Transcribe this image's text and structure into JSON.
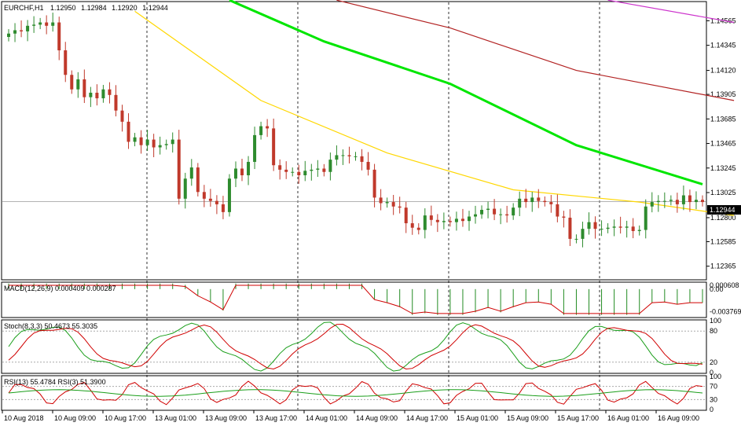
{
  "header": {
    "symbol": "EURCHF,H1",
    "open": "1.12950",
    "high": "1.12984",
    "low": "1.12920",
    "close": "1.12944"
  },
  "colors": {
    "bull": "#2e8b2e",
    "bear": "#c0392b",
    "ma_fast": "#ffd700",
    "ma_mid": "#00e600",
    "ma_slow": "#b22222",
    "ma_xslow": "#cc33cc",
    "signal_red": "#d00000",
    "signal_green": "#1a9e1a",
    "macd_hist": "#228b22"
  },
  "chart_data": [
    {
      "type": "candlestick",
      "panel": "price",
      "title": "EURCHF,H1",
      "ylim": [
        1.1225,
        1.1473
      ],
      "current_price": "1.12944",
      "y_ticks": [
        "1.14565",
        "1.14345",
        "1.14120",
        "1.13905",
        "1.13685",
        "1.13465",
        "1.13245",
        "1.13025",
        "1.12800",
        "1.12585",
        "1.12365"
      ],
      "x_ticks": [
        "10 Aug 2018",
        "10 Aug 09:00",
        "10 Aug 17:00",
        "13 Aug 01:00",
        "13 Aug 09:00",
        "13 Aug 17:00",
        "14 Aug 01:00",
        "14 Aug 09:00",
        "14 Aug 17:00",
        "15 Aug 01:00",
        "15 Aug 09:00",
        "15 Aug 17:00",
        "16 Aug 01:00",
        "16 Aug 09:00"
      ],
      "close": [
        1.1445,
        1.1448,
        1.1447,
        1.1452,
        1.1453,
        1.1455,
        1.1452,
        1.1455,
        1.143,
        1.1408,
        1.1395,
        1.1404,
        1.1388,
        1.1392,
        1.1387,
        1.1395,
        1.139,
        1.1376,
        1.1366,
        1.1348,
        1.1352,
        1.1345,
        1.135,
        1.1343,
        1.1345,
        1.1346,
        1.135,
        1.1297,
        1.1315,
        1.1325,
        1.1303,
        1.1297,
        1.1295,
        1.1292,
        1.1285,
        1.1315,
        1.1324,
        1.1318,
        1.133,
        1.1354,
        1.1362,
        1.136,
        1.1327,
        1.1323,
        1.1321,
        1.1321,
        1.1318,
        1.1322,
        1.1323,
        1.1324,
        1.1321,
        1.1332,
        1.1336,
        1.1336,
        1.1335,
        1.1335,
        1.133,
        1.1323,
        1.1298,
        1.1293,
        1.1294,
        1.129,
        1.1289,
        1.1275,
        1.1271,
        1.1269,
        1.1282,
        1.1278,
        1.1276,
        1.1277,
        1.1276,
        1.1279,
        1.1277,
        1.1281,
        1.1283,
        1.1287,
        1.1288,
        1.1283,
        1.1283,
        1.1282,
        1.1289,
        1.1297,
        1.1294,
        1.1298,
        1.1295,
        1.1294,
        1.1292,
        1.1281,
        1.128,
        1.1261,
        1.1261,
        1.127,
        1.1276,
        1.127,
        1.127,
        1.1271,
        1.1272,
        1.1271,
        1.1272,
        1.1268,
        1.1269,
        1.129,
        1.1294,
        1.1295,
        1.1295,
        1.1296,
        1.1292,
        1.13,
        1.1294,
        1.1296,
        1.1294
      ],
      "moving_averages": [
        {
          "color_key": "ma_fast",
          "points": [
            [
              20,
              1.1465
            ],
            [
              40,
              1.1385
            ],
            [
              60,
              1.1338
            ],
            [
              80,
              1.1305
            ],
            [
              100,
              1.1294
            ],
            [
              115,
              1.1282
            ]
          ]
        },
        {
          "color_key": "ma_mid",
          "points": [
            [
              35,
              1.1475
            ],
            [
              50,
              1.1438
            ],
            [
              70,
              1.14
            ],
            [
              90,
              1.1345
            ],
            [
              110,
              1.131
            ]
          ]
        },
        {
          "color_key": "ma_slow",
          "points": [
            [
              52,
              1.1475
            ],
            [
              70,
              1.145
            ],
            [
              90,
              1.1412
            ],
            [
              115,
              1.1385
            ]
          ]
        },
        {
          "color_key": "ma_xslow",
          "points": [
            [
              95,
              1.1475
            ],
            [
              115,
              1.1455
            ]
          ]
        }
      ]
    },
    {
      "type": "macd",
      "panel": "macd",
      "title": "MACD(12,26,9) 0.000409 0.000287",
      "ylim": [
        -0.0045,
        0.001
      ],
      "y_ticks": [
        "0.000608",
        "0.00",
        "-0.003769"
      ]
    },
    {
      "type": "line",
      "panel": "stoch",
      "title": "Stoch(8,3,3) 50.4673 55.3035",
      "ylim": [
        0,
        100
      ],
      "y_ticks": [
        "100",
        "80",
        "20",
        "0"
      ],
      "levels": [
        80,
        20
      ]
    },
    {
      "type": "line",
      "panel": "rsi",
      "title": "RSI(13) 55.4784  RSI(3) 51.3900",
      "ylim": [
        0,
        100
      ],
      "y_ticks": [
        "100",
        "70",
        "30",
        "0"
      ],
      "levels": [
        70,
        30
      ]
    }
  ]
}
